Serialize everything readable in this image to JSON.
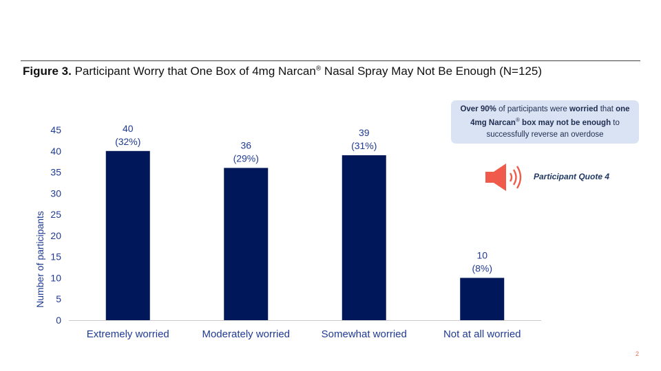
{
  "header": {
    "figure_label": "Figure 3.",
    "title_main": " Participant Worry that One Box of 4mg Narcan",
    "title_mark": "®",
    "title_tail": " Nasal Spray May Not Be Enough (N=125)"
  },
  "callout": {
    "p1": "Over 90%",
    "p2": " of participants were ",
    "p3": "worried",
    "p4": " that ",
    "p5": "one 4mg Narcan",
    "p6": "®",
    "p7": " box may not be enough",
    "p8": " to successfully  reverse an overdose"
  },
  "audio": {
    "icon": "speaker-icon",
    "label": "Participant Quote 4",
    "icon_color": "#f05a4a",
    "label_color": "#203864"
  },
  "page_number": "2",
  "chart_data": {
    "type": "bar",
    "categories": [
      "Extremely worried",
      "Moderately worried",
      "Somewhat worried",
      "Not at all worried"
    ],
    "values": [
      40,
      36,
      39,
      10
    ],
    "data_labels": [
      [
        "40",
        "(32%)"
      ],
      [
        "36",
        "(29%)"
      ],
      [
        "39",
        "(31%)"
      ],
      [
        "10",
        "(8%)"
      ]
    ],
    "ylabel": "Number of participants",
    "xlabel": "",
    "ylim": [
      0,
      45
    ],
    "yticks": [
      0,
      5,
      10,
      15,
      20,
      25,
      30,
      35,
      40,
      45
    ],
    "grid": false,
    "bar_color": "#00175a",
    "axis_text_color": "#1f3a93",
    "label_color": "#1f3a93"
  }
}
